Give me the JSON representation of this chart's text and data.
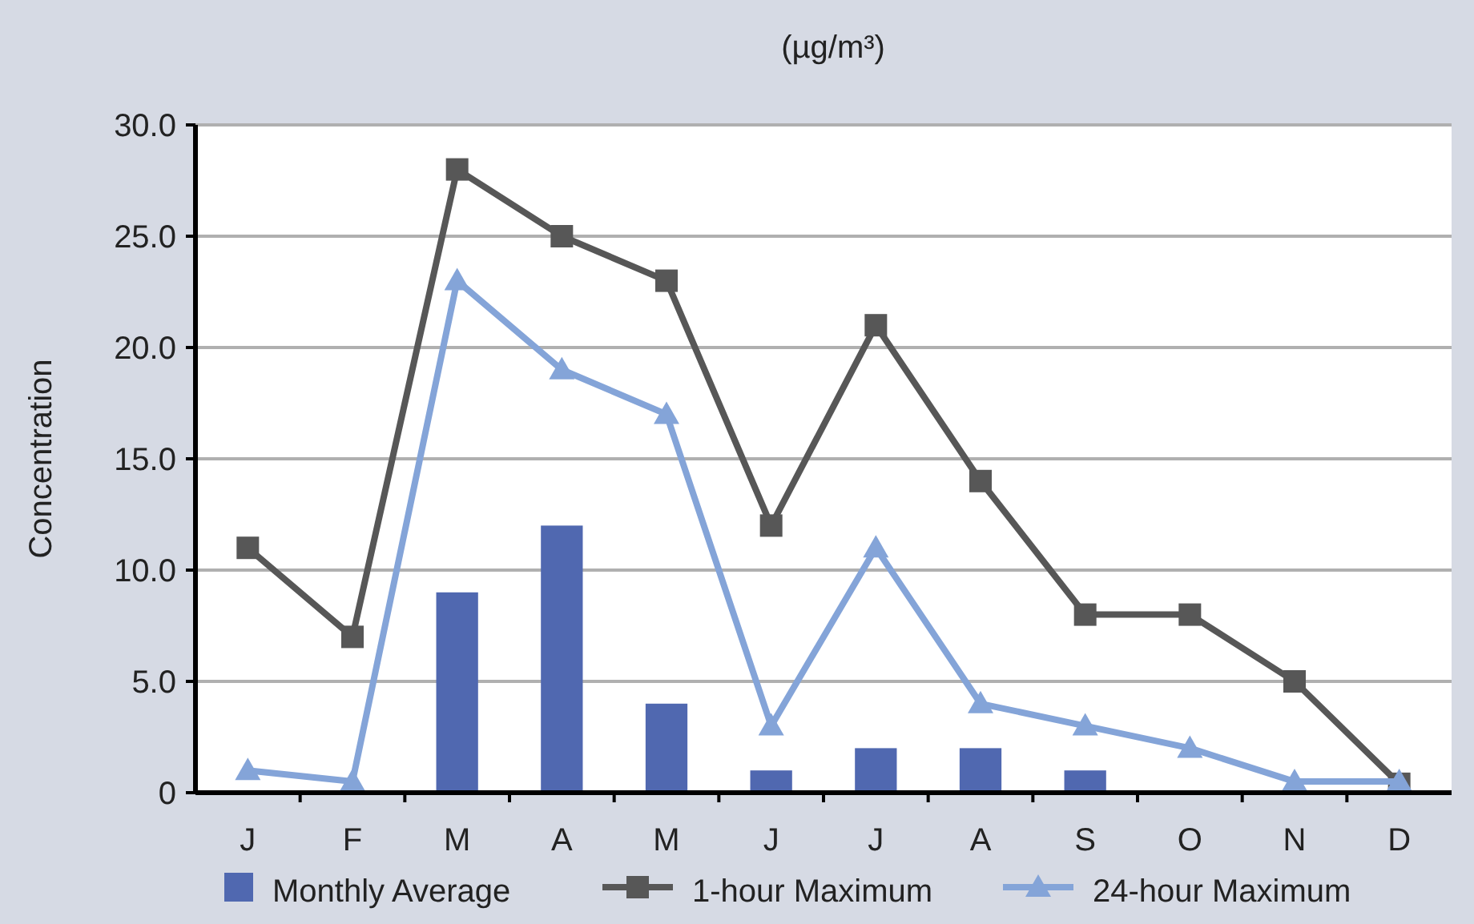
{
  "chart_data": {
    "type": "bar",
    "title": "(µg/m³)",
    "ylabel": "Concentration",
    "categories": [
      "J",
      "F",
      "M",
      "A",
      "M",
      "J",
      "J",
      "A",
      "S",
      "O",
      "N",
      "D"
    ],
    "series": [
      {
        "name": "Monthly Average",
        "color": "#5068b0",
        "values": [
          null,
          null,
          9,
          12,
          4,
          1,
          2,
          2,
          1,
          null,
          null,
          null
        ]
      },
      {
        "name": "1-hour Maximum",
        "type": "line",
        "color": "#575757",
        "marker": "square",
        "values": [
          11,
          7,
          28,
          25,
          23,
          12,
          21,
          14,
          8,
          8,
          5,
          0.4
        ]
      },
      {
        "name": "24-hour Maximum",
        "type": "line",
        "color": "#84a4d8",
        "marker": "triangle",
        "values": [
          1,
          0.5,
          23,
          19,
          17,
          3,
          11,
          4,
          3,
          2,
          0.5,
          0.5
        ]
      }
    ],
    "ylim": [
      0,
      30
    ],
    "yticks": [
      {
        "value": 0,
        "label": "0"
      },
      {
        "value": 5,
        "label": "5.0"
      },
      {
        "value": 10,
        "label": "10.0"
      },
      {
        "value": 15,
        "label": "15.0"
      },
      {
        "value": 20,
        "label": "20.0"
      },
      {
        "value": 25,
        "label": "25.0"
      },
      {
        "value": 30,
        "label": "30.0"
      }
    ],
    "grid": "y",
    "legend": "bottom"
  }
}
